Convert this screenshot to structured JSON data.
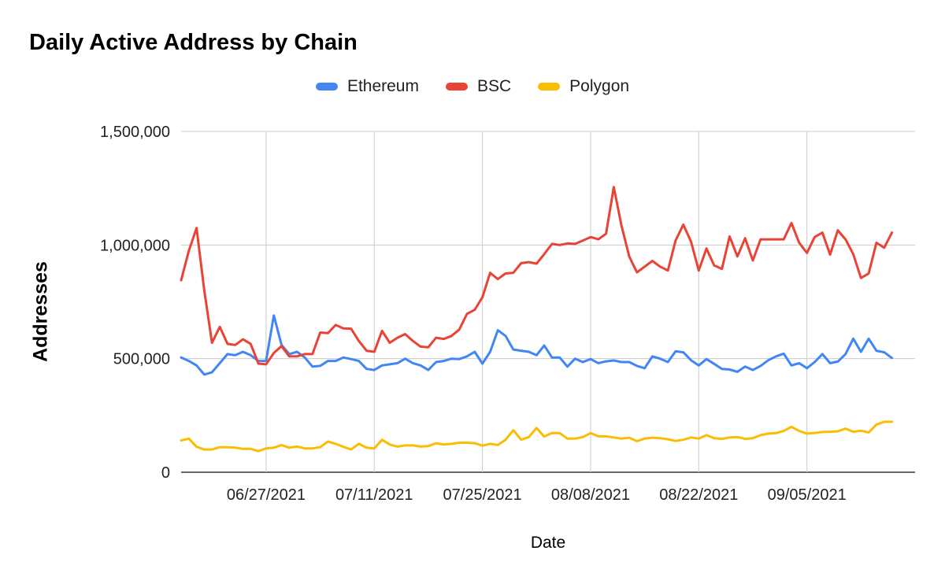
{
  "chart_data": {
    "type": "line",
    "title": "Daily Active Address by Chain",
    "xlabel": "Date",
    "ylabel": "Addresses",
    "ylim": [
      0,
      1500000
    ],
    "yticks": [
      0,
      500000,
      1000000,
      1500000
    ],
    "ytick_labels": [
      "0",
      "500,000",
      "1,000,000",
      "1,500,000"
    ],
    "x_start": "2021-06-16",
    "x_end": "2021-09-19",
    "xtick_dates": [
      "2021-06-27",
      "2021-07-11",
      "2021-07-25",
      "2021-08-08",
      "2021-08-22",
      "2021-09-05"
    ],
    "xtick_labels": [
      "06/27/2021",
      "07/11/2021",
      "07/25/2021",
      "08/08/2021",
      "08/22/2021",
      "09/05/2021"
    ],
    "grid": "vertical and horizontal",
    "legend_position": "top",
    "series": [
      {
        "name": "Ethereum",
        "color": "#4285F4",
        "values": [
          505000,
          490000,
          470000,
          430000,
          440000,
          480000,
          520000,
          515000,
          530000,
          515000,
          490000,
          490000,
          690000,
          560000,
          520000,
          530000,
          505000,
          465000,
          468000,
          490000,
          490000,
          505000,
          498000,
          490000,
          455000,
          450000,
          470000,
          475000,
          480000,
          500000,
          480000,
          470000,
          450000,
          485000,
          490000,
          500000,
          498000,
          510000,
          530000,
          478000,
          530000,
          625000,
          600000,
          540000,
          535000,
          530000,
          515000,
          558000,
          505000,
          505000,
          465000,
          500000,
          485000,
          498000,
          480000,
          488000,
          492000,
          485000,
          485000,
          468000,
          458000,
          510000,
          500000,
          485000,
          532000,
          528000,
          493000,
          470000,
          498000,
          477000,
          455000,
          452000,
          442000,
          465000,
          450000,
          468000,
          493000,
          510000,
          522000,
          470000,
          480000,
          458000,
          485000,
          520000,
          480000,
          487000,
          520000,
          588000,
          530000,
          588000,
          535000,
          528000,
          503000
        ]
      },
      {
        "name": "BSC",
        "color": "#EA4335",
        "values": [
          845000,
          975000,
          1075000,
          800000,
          570000,
          640000,
          565000,
          560000,
          585000,
          565000,
          478000,
          475000,
          525000,
          555000,
          510000,
          510000,
          520000,
          520000,
          615000,
          612000,
          648000,
          633000,
          632000,
          578000,
          535000,
          530000,
          622000,
          570000,
          592000,
          608000,
          578000,
          553000,
          550000,
          592000,
          587000,
          600000,
          628000,
          697000,
          715000,
          770000,
          878000,
          850000,
          875000,
          878000,
          920000,
          925000,
          918000,
          960000,
          1005000,
          1000000,
          1007000,
          1005000,
          1020000,
          1035000,
          1025000,
          1050000,
          1255000,
          1085000,
          950000,
          880000,
          905000,
          930000,
          905000,
          888000,
          1020000,
          1090000,
          1015000,
          888000,
          985000,
          910000,
          895000,
          1038000,
          950000,
          1030000,
          932000,
          1025000,
          1025000,
          1025000,
          1025000,
          1097000,
          1010000,
          965000,
          1035000,
          1055000,
          958000,
          1065000,
          1025000,
          960000,
          855000,
          875000,
          1010000,
          988000,
          1055000
        ]
      },
      {
        "name": "Polygon",
        "color": "#FBBC04",
        "values": [
          140000,
          148000,
          112000,
          100000,
          100000,
          110000,
          110000,
          108000,
          103000,
          103000,
          93000,
          105000,
          108000,
          120000,
          108000,
          113000,
          105000,
          105000,
          110000,
          135000,
          125000,
          112000,
          100000,
          125000,
          108000,
          105000,
          143000,
          122000,
          113000,
          118000,
          118000,
          113000,
          115000,
          128000,
          122000,
          125000,
          130000,
          130000,
          128000,
          117000,
          125000,
          120000,
          143000,
          185000,
          143000,
          155000,
          195000,
          157000,
          173000,
          172000,
          148000,
          148000,
          155000,
          172000,
          158000,
          158000,
          153000,
          148000,
          152000,
          137000,
          148000,
          152000,
          150000,
          145000,
          138000,
          143000,
          153000,
          148000,
          163000,
          150000,
          147000,
          153000,
          155000,
          147000,
          150000,
          163000,
          170000,
          172000,
          182000,
          200000,
          182000,
          170000,
          173000,
          177000,
          178000,
          180000,
          192000,
          178000,
          183000,
          175000,
          210000,
          222000,
          222000
        ]
      }
    ]
  }
}
